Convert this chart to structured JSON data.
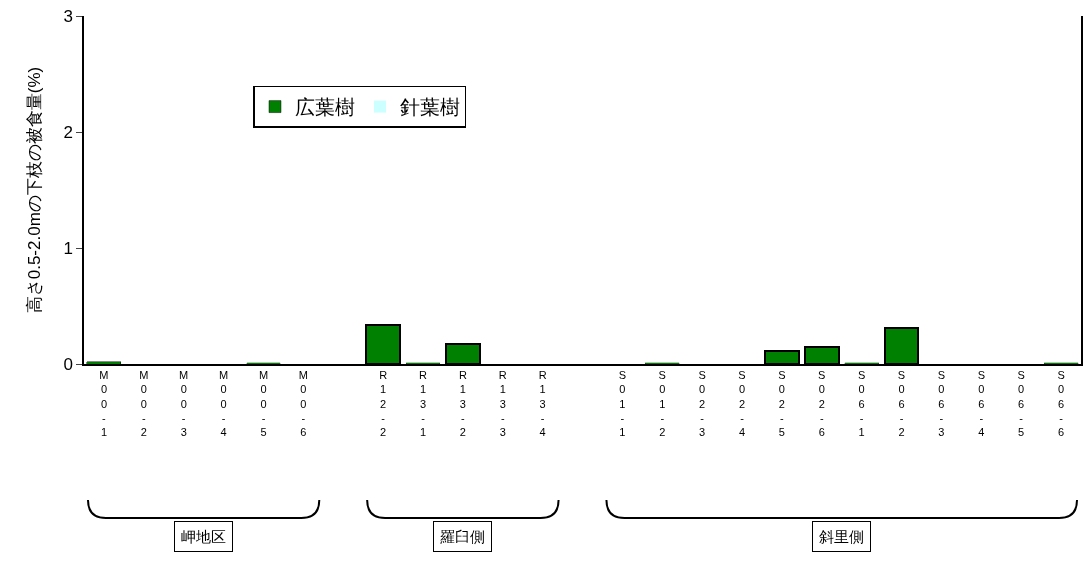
{
  "chart_data": {
    "type": "bar",
    "ylabel": "高さ0.5-2.0mの下枝の被食量(%)",
    "categories": [
      "M00-1",
      "M00-2",
      "M00-3",
      "M00-4",
      "M00-5",
      "M00-6",
      null,
      "R12-2",
      "R13-1",
      "R13-2",
      "R13-3",
      "R13-4",
      null,
      "S01-1",
      "S01-2",
      "S02-3",
      "S02-4",
      "S02-5",
      "S02-6",
      "S06-1",
      "S06-2",
      "S06-3",
      "S06-4",
      "S06-5",
      "S06-6"
    ],
    "series": [
      {
        "name": "広葉樹",
        "color": "#008000",
        "values": [
          0.02,
          0,
          0,
          0,
          0.01,
          0,
          null,
          0.34,
          0.01,
          0.17,
          0,
          0,
          null,
          0,
          0.01,
          0,
          0,
          0.11,
          0.15,
          0.01,
          0.31,
          0,
          0,
          0,
          0.01
        ]
      },
      {
        "name": "針葉樹",
        "color": "#ccffff",
        "values": [
          null,
          null,
          null,
          null,
          null,
          null,
          null,
          null,
          null,
          null,
          null,
          null,
          null,
          null,
          null,
          null,
          null,
          null,
          null,
          null,
          null,
          null,
          null,
          null,
          null
        ]
      }
    ],
    "stacked": true,
    "ylim": [
      0,
      3
    ],
    "yticks": [
      0,
      1,
      2,
      3
    ],
    "grid": false,
    "legend": "top left",
    "annotations": [
      "岬地区",
      "羅臼側",
      "斜里側"
    ]
  }
}
